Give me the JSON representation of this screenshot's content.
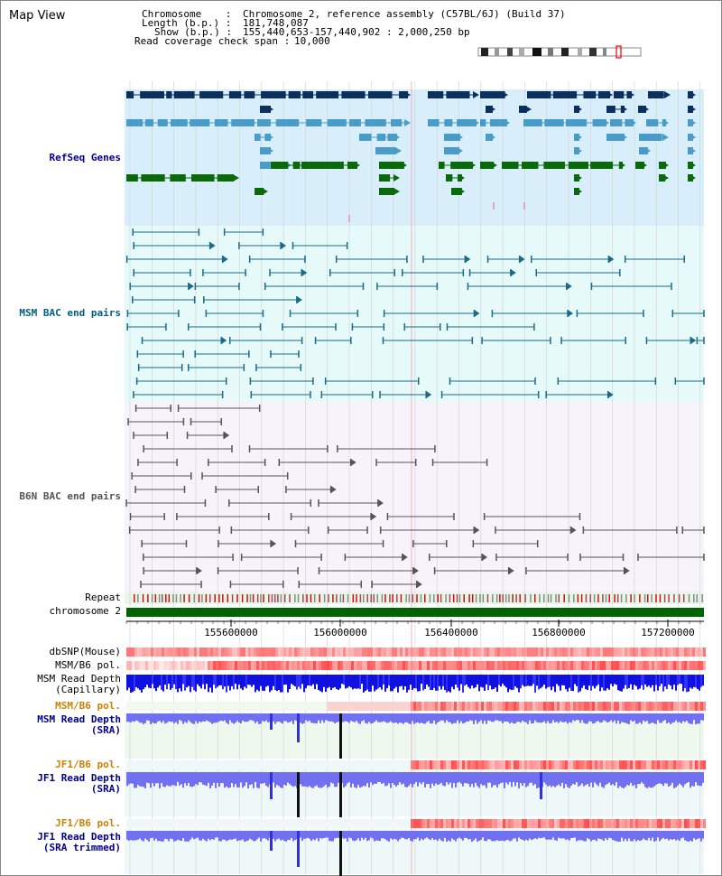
{
  "title": "Map View",
  "header": {
    "chromosome_label": "Chromosome    :",
    "chromosome_value": "Chromosome 2, reference assembly (C57BL/6J) (Build 37)",
    "length_label": "Length (b.p.) :",
    "length_value": "181,748,087",
    "show_label": "Show (b.p.) :",
    "show_value": "155,440,653-157,440,902 : 2,000,250 bp",
    "coverage_label": "Read coverage check span :",
    "coverage_value": "10,000"
  },
  "tracks": {
    "refseq": "RefSeq Genes",
    "msm_bac": "MSM BAC end pairs",
    "b6n_bac": "B6N BAC end pairs",
    "repeat": "Repeat",
    "chromosome": "chromosome 2",
    "dbsnp": "dbSNP(Mouse)",
    "msm_b6_pol_1": "MSM/B6 pol.",
    "msm_read_depth_cap_1": "MSM Read Depth",
    "msm_read_depth_cap_2": "(Capillary)",
    "msm_b6_pol_2": "MSM/B6 pol.",
    "msm_read_depth_sra_1": "MSM Read Depth",
    "msm_read_depth_sra_2": "(SRA)",
    "jf1_b6_pol_1": "JF1/B6 pol.",
    "jf1_read_depth_1": "JF1 Read Depth",
    "jf1_read_depth_2": "(SRA)",
    "jf1_b6_pol_2": "JF1/B6 pol.",
    "jf1_read_depth_trim_1": "JF1 Read Depth",
    "jf1_read_depth_trim_2": "(SRA trimmed)"
  },
  "ruler": {
    "ticks": [
      "155600000",
      "156000000",
      "156400000",
      "156800000",
      "157200000"
    ]
  },
  "colors": {
    "refseq_dark": "#0b3060",
    "refseq_light": "#4a9cc8",
    "refseq_green": "#0a6a0a",
    "msm_bac": "#1a6a8a",
    "b6n_bac": "#555555",
    "chromosome_bar": "#006400",
    "label_blue": "#000090",
    "label_orange": "#d08000",
    "label_teal": "#005f80"
  }
}
